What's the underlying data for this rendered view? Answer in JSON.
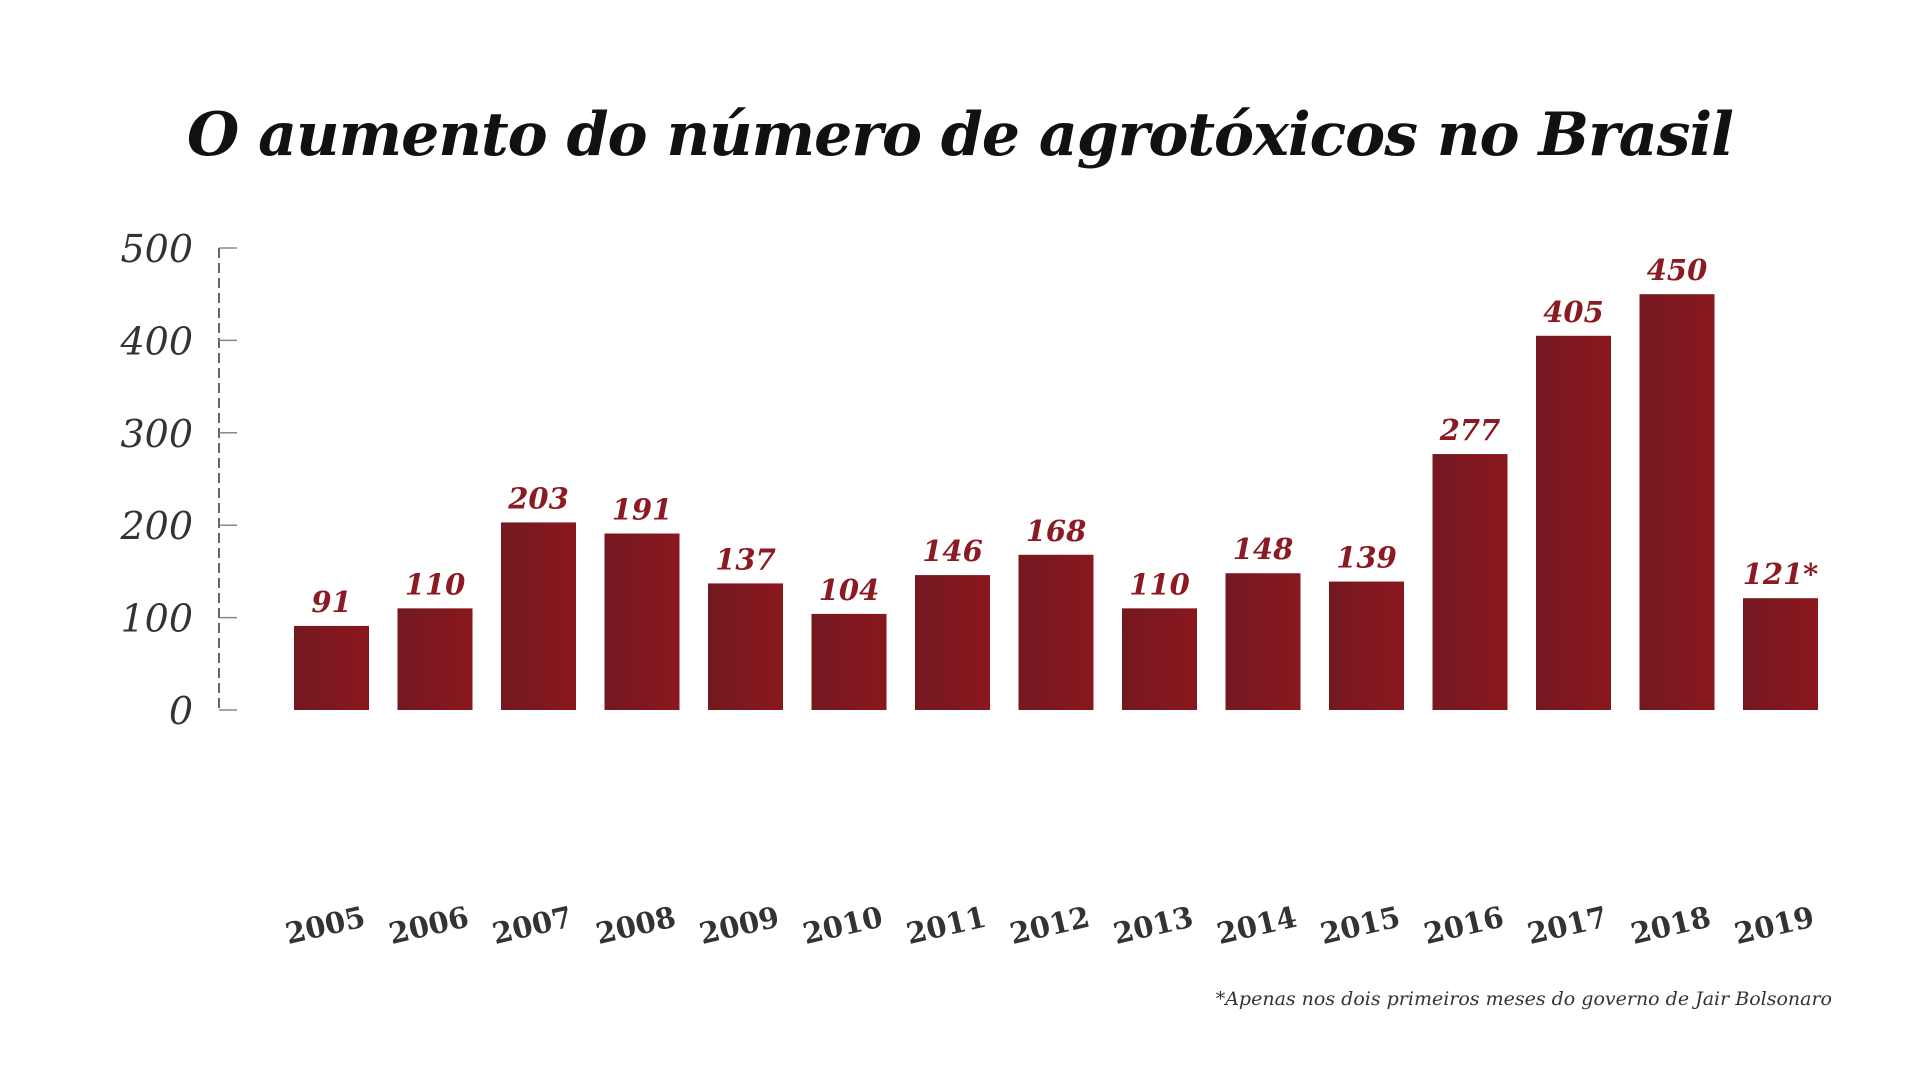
{
  "chart_data": {
    "type": "bar",
    "title": "O aumento do número de agrotóxicos no Brasil",
    "categories": [
      "2005",
      "2006",
      "2007",
      "2008",
      "2009",
      "2010",
      "2011",
      "2012",
      "2013",
      "2014",
      "2015",
      "2016",
      "2017",
      "2018",
      "2019"
    ],
    "values": [
      91,
      110,
      203,
      191,
      137,
      104,
      146,
      168,
      110,
      148,
      139,
      277,
      405,
      450,
      121
    ],
    "data_labels": [
      "91",
      "110",
      "203",
      "191",
      "137",
      "104",
      "146",
      "168",
      "110",
      "148",
      "139",
      "277",
      "405",
      "450",
      "121*"
    ],
    "yticks": [
      0,
      100,
      200,
      300,
      400,
      500
    ],
    "ylim": [
      0,
      500
    ],
    "xlabel": "",
    "ylabel": "",
    "grid": false,
    "footnote": "*Apenas nos dois primeiros meses do governo de Jair Bolsonaro",
    "colors": {
      "bar_dark": "#741820",
      "bar_light": "#8a171e",
      "label": "#8b1a22",
      "axis_text": "#333333"
    }
  }
}
